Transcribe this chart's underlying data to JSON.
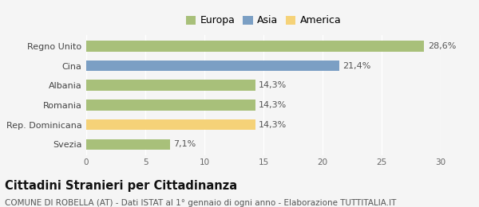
{
  "categories": [
    "Svezia",
    "Rep. Dominicana",
    "Romania",
    "Albania",
    "Cina",
    "Regno Unito"
  ],
  "values": [
    7.1,
    14.3,
    14.3,
    14.3,
    21.4,
    28.6
  ],
  "labels": [
    "7,1%",
    "14,3%",
    "14,3%",
    "14,3%",
    "21,4%",
    "28,6%"
  ],
  "colors": [
    "#a8c07a",
    "#f5d278",
    "#a8c07a",
    "#a8c07a",
    "#7b9fc4",
    "#a8c07a"
  ],
  "xlim": [
    0,
    30
  ],
  "xticks": [
    0,
    5,
    10,
    15,
    20,
    25,
    30
  ],
  "legend_items": [
    {
      "label": "Europa",
      "color": "#a8c07a"
    },
    {
      "label": "Asia",
      "color": "#7b9fc4"
    },
    {
      "label": "America",
      "color": "#f5d278"
    }
  ],
  "title": "Cittadini Stranieri per Cittadinanza",
  "subtitle": "COMUNE DI ROBELLA (AT) - Dati ISTAT al 1° gennaio di ogni anno - Elaborazione TUTTITALIA.IT",
  "background_color": "#f5f5f5",
  "bar_label_fontsize": 8,
  "title_fontsize": 10.5,
  "subtitle_fontsize": 7.5
}
